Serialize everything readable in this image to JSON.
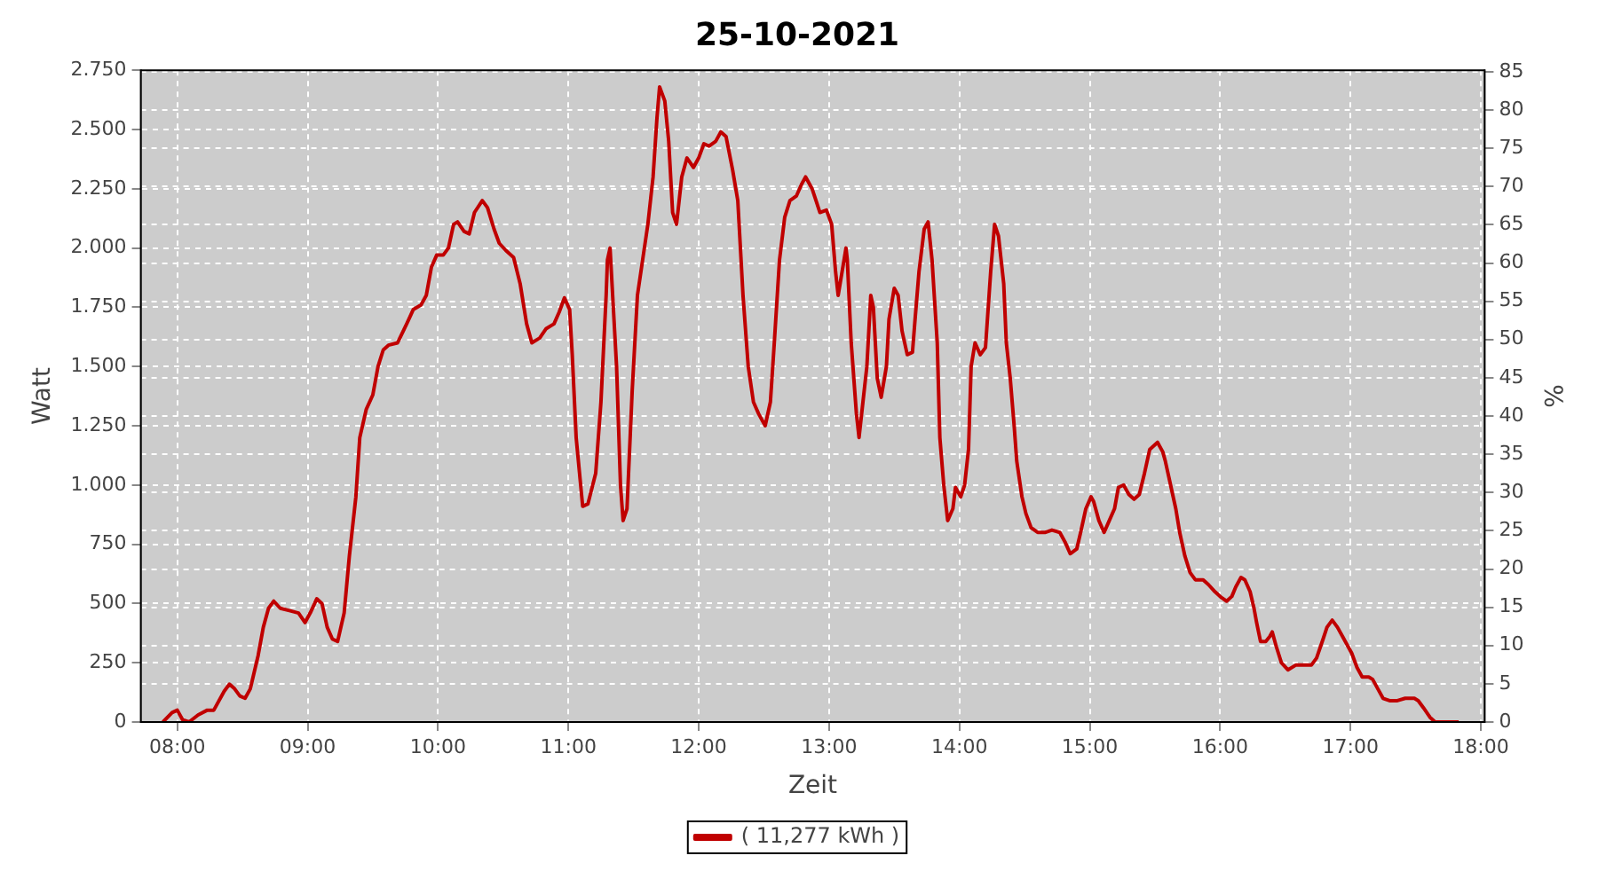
{
  "chart_data": {
    "type": "line",
    "title": "25-10-2021",
    "xlabel": "Zeit",
    "ylabel": "Watt",
    "y2label": "%",
    "x": [
      7.89,
      7.96,
      8.0,
      8.04,
      8.09,
      8.16,
      8.23,
      8.28,
      8.36,
      8.4,
      8.44,
      8.48,
      8.52,
      8.56,
      8.62,
      8.66,
      8.7,
      8.74,
      8.79,
      8.86,
      8.93,
      8.98,
      9.02,
      9.07,
      9.11,
      9.15,
      9.19,
      9.23,
      9.28,
      9.32,
      9.37,
      9.4,
      9.45,
      9.5,
      9.54,
      9.58,
      9.62,
      9.69,
      9.76,
      9.81,
      9.87,
      9.91,
      9.95,
      9.99,
      10.04,
      10.08,
      10.12,
      10.15,
      10.2,
      10.24,
      10.28,
      10.34,
      10.38,
      10.43,
      10.47,
      10.52,
      10.58,
      10.63,
      10.68,
      10.72,
      10.78,
      10.83,
      10.89,
      10.93,
      10.97,
      11.01,
      11.03,
      11.06,
      11.11,
      11.15,
      11.21,
      11.25,
      11.29,
      11.3,
      11.32,
      11.34,
      11.37,
      11.4,
      11.42,
      11.45,
      11.49,
      11.53,
      11.57,
      11.61,
      11.65,
      11.68,
      11.7,
      11.74,
      11.77,
      11.8,
      11.83,
      11.87,
      11.91,
      11.96,
      12.0,
      12.04,
      12.08,
      12.13,
      12.17,
      12.21,
      12.26,
      12.3,
      12.34,
      12.38,
      12.42,
      12.46,
      12.51,
      12.55,
      12.58,
      12.62,
      12.66,
      12.7,
      12.75,
      12.79,
      12.82,
      12.87,
      12.9,
      12.93,
      12.98,
      13.02,
      13.05,
      13.07,
      13.1,
      13.13,
      13.14,
      13.17,
      13.21,
      13.23,
      13.26,
      13.29,
      13.32,
      13.34,
      13.37,
      13.4,
      13.44,
      13.46,
      13.5,
      13.53,
      13.56,
      13.6,
      13.64,
      13.66,
      13.69,
      13.73,
      13.76,
      13.79,
      13.83,
      13.85,
      13.88,
      13.91,
      13.95,
      13.97,
      14.01,
      14.04,
      14.07,
      14.09,
      14.12,
      14.16,
      14.2,
      14.24,
      14.27,
      14.3,
      14.34,
      14.36,
      14.39,
      14.42,
      14.44,
      14.48,
      14.51,
      14.55,
      14.6,
      14.66,
      14.71,
      14.77,
      14.81,
      14.85,
      14.9,
      14.93,
      14.97,
      15.01,
      15.03,
      15.07,
      15.11,
      15.15,
      15.19,
      15.22,
      15.26,
      15.3,
      15.34,
      15.38,
      15.42,
      15.46,
      15.52,
      15.56,
      15.58,
      15.62,
      15.66,
      15.69,
      15.73,
      15.77,
      15.81,
      15.87,
      15.91,
      15.96,
      16.01,
      16.05,
      16.09,
      16.12,
      16.16,
      16.19,
      16.23,
      16.26,
      16.28,
      16.31,
      16.35,
      16.38,
      16.4,
      16.43,
      16.47,
      16.52,
      16.58,
      16.66,
      16.7,
      16.74,
      16.79,
      16.82,
      16.86,
      16.9,
      16.94,
      16.98,
      17.01,
      17.05,
      17.09,
      17.14,
      17.17,
      17.21,
      17.25,
      17.3,
      17.36,
      17.42,
      17.49,
      17.52,
      17.56,
      17.61,
      17.65,
      17.83
    ],
    "series": [
      {
        "name": "( 11,277 kWh )",
        "color": "#c00000",
        "values": [
          0,
          40,
          50,
          10,
          0,
          30,
          50,
          50,
          130,
          160,
          140,
          110,
          100,
          140,
          280,
          400,
          480,
          510,
          480,
          470,
          460,
          420,
          460,
          520,
          500,
          400,
          350,
          340,
          460,
          700,
          950,
          1200,
          1320,
          1380,
          1500,
          1570,
          1590,
          1600,
          1680,
          1740,
          1760,
          1800,
          1920,
          1970,
          1970,
          2000,
          2100,
          2110,
          2070,
          2060,
          2150,
          2200,
          2170,
          2080,
          2020,
          1990,
          1960,
          1850,
          1680,
          1600,
          1620,
          1660,
          1680,
          1730,
          1790,
          1740,
          1550,
          1200,
          910,
          920,
          1050,
          1350,
          1800,
          1950,
          2000,
          1800,
          1500,
          1000,
          850,
          900,
          1400,
          1800,
          1950,
          2100,
          2300,
          2550,
          2680,
          2620,
          2450,
          2150,
          2100,
          2300,
          2380,
          2340,
          2380,
          2440,
          2430,
          2450,
          2490,
          2470,
          2330,
          2200,
          1800,
          1500,
          1350,
          1300,
          1250,
          1350,
          1600,
          1950,
          2130,
          2200,
          2220,
          2270,
          2300,
          2250,
          2200,
          2150,
          2160,
          2100,
          1900,
          1800,
          1900,
          2000,
          1950,
          1600,
          1300,
          1200,
          1350,
          1500,
          1800,
          1750,
          1450,
          1370,
          1500,
          1700,
          1830,
          1800,
          1650,
          1550,
          1560,
          1700,
          1900,
          2080,
          2110,
          1950,
          1600,
          1200,
          1000,
          850,
          900,
          990,
          950,
          1000,
          1150,
          1500,
          1600,
          1550,
          1580,
          1900,
          2100,
          2050,
          1850,
          1600,
          1450,
          1250,
          1100,
          950,
          880,
          820,
          800,
          800,
          810,
          800,
          760,
          710,
          730,
          800,
          900,
          950,
          930,
          850,
          800,
          850,
          900,
          990,
          1000,
          960,
          940,
          960,
          1050,
          1150,
          1180,
          1140,
          1100,
          1000,
          900,
          800,
          700,
          630,
          600,
          600,
          580,
          550,
          525,
          510,
          530,
          570,
          610,
          600,
          550,
          480,
          420,
          340,
          340,
          360,
          380,
          320,
          250,
          220,
          240,
          240,
          240,
          270,
          350,
          400,
          430,
          400,
          360,
          320,
          290,
          230,
          190,
          190,
          180,
          140,
          100,
          90,
          90,
          100,
          100,
          90,
          60,
          20,
          0,
          0
        ]
      }
    ],
    "xlim": [
      7.72,
      18.03
    ],
    "xticks": [
      {
        "value": 8,
        "label": "08:00"
      },
      {
        "value": 9,
        "label": "09:00"
      },
      {
        "value": 10,
        "label": "10:00"
      },
      {
        "value": 11,
        "label": "11:00"
      },
      {
        "value": 12,
        "label": "12:00"
      },
      {
        "value": 13,
        "label": "13:00"
      },
      {
        "value": 14,
        "label": "14:00"
      },
      {
        "value": 15,
        "label": "15:00"
      },
      {
        "value": 16,
        "label": "16:00"
      },
      {
        "value": 17,
        "label": "17:00"
      },
      {
        "value": 18,
        "label": "18:00"
      }
    ],
    "ylim": [
      0,
      2750
    ],
    "yticks": [
      0,
      250,
      500,
      750,
      {
        "value": 1000,
        "label": "1.000"
      },
      {
        "value": 1250,
        "label": "1.250"
      },
      {
        "value": 1500,
        "label": "1.500"
      },
      {
        "value": 1750,
        "label": "1.750"
      },
      {
        "value": 2000,
        "label": "2.000"
      },
      {
        "value": 2250,
        "label": "2.250"
      },
      {
        "value": 2500,
        "label": "2.500"
      },
      {
        "value": 2750,
        "label": "2.750"
      }
    ],
    "y2lim": [
      0,
      85.2
    ],
    "y2ticks": [
      0,
      5,
      10,
      15,
      20,
      25,
      30,
      35,
      40,
      45,
      50,
      55,
      60,
      65,
      70,
      75,
      80,
      85
    ],
    "grid": true,
    "legend": "bottom",
    "marker": "none",
    "line_style": "solid"
  }
}
